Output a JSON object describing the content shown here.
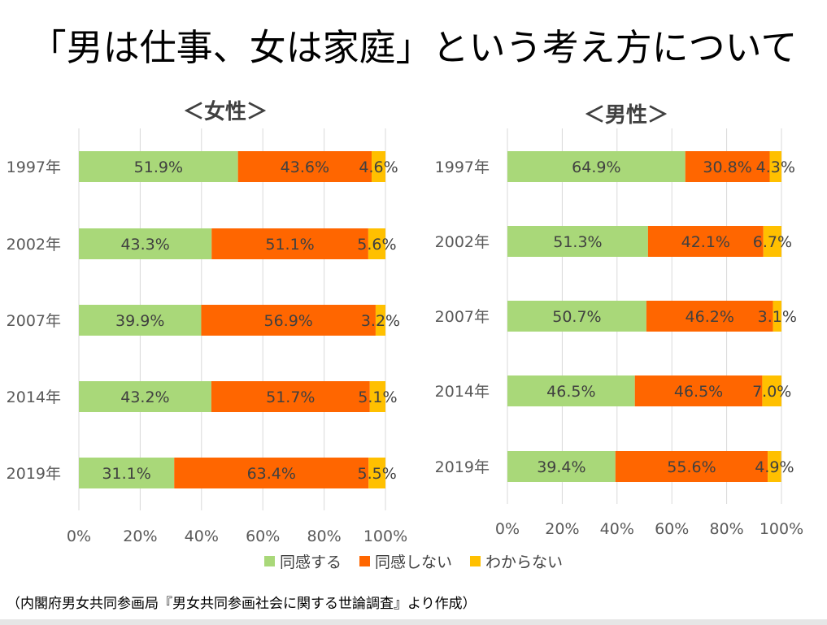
{
  "title": "「男は仕事、女は家庭」という考え方について",
  "source_note": "（内閣府男女共同参画局『男女共同参画社会に関する世論調査』より作成）",
  "colors": {
    "agree": "#a9d879",
    "disagree": "#ff6600",
    "unknown": "#ffc000",
    "grid": "#d9d9d9",
    "axis_text": "#595959",
    "label_text": "#404040"
  },
  "legend": [
    {
      "label": "同感する",
      "color": "#a9d879"
    },
    {
      "label": "同感しない",
      "color": "#ff6600"
    },
    {
      "label": "わからない",
      "color": "#ffc000"
    }
  ],
  "chart_data": [
    {
      "type": "bar",
      "orientation": "horizontal",
      "stacked": true,
      "title": "＜女性＞",
      "categories": [
        "1997年",
        "2002年",
        "2007年",
        "2014年",
        "2019年"
      ],
      "series": [
        {
          "name": "同感する",
          "values": [
            51.9,
            43.3,
            39.9,
            43.2,
            31.1
          ],
          "labels": [
            "51.9%",
            "43.3%",
            "39.9%",
            "43.2%",
            "31.1%"
          ]
        },
        {
          "name": "同感しない",
          "values": [
            43.6,
            51.1,
            56.9,
            51.7,
            63.4
          ],
          "labels": [
            "43.6%",
            "51.1%",
            "56.9%",
            "51.7%",
            "63.4%"
          ]
        },
        {
          "name": "わからない",
          "values": [
            4.6,
            5.6,
            3.2,
            5.1,
            5.5
          ],
          "labels": [
            "4.6%",
            "5.6%",
            "3.2%",
            "5.1%",
            "5.5%"
          ]
        }
      ],
      "xlim": [
        0,
        100
      ],
      "xticks": [
        "0%",
        "20%",
        "40%",
        "60%",
        "80%",
        "100%"
      ],
      "grid": true,
      "legend": "bottom"
    },
    {
      "type": "bar",
      "orientation": "horizontal",
      "stacked": true,
      "title": "＜男性＞",
      "categories": [
        "1997年",
        "2002年",
        "2007年",
        "2014年",
        "2019年"
      ],
      "series": [
        {
          "name": "同感する",
          "values": [
            64.9,
            51.3,
            50.7,
            46.5,
            39.4
          ],
          "labels": [
            "64.9%",
            "51.3%",
            "50.7%",
            "46.5%",
            "39.4%"
          ]
        },
        {
          "name": "同感しない",
          "values": [
            30.8,
            42.1,
            46.2,
            46.5,
            55.6
          ],
          "labels": [
            "30.8%",
            "42.1%",
            "46.2%",
            "46.5%",
            "55.6%"
          ]
        },
        {
          "name": "わからない",
          "values": [
            4.3,
            6.7,
            3.1,
            7.0,
            4.9
          ],
          "labels": [
            "4.3%",
            "6.7%",
            "3.1%",
            "7.0%",
            "4.9%"
          ]
        }
      ],
      "xlim": [
        0,
        100
      ],
      "xticks": [
        "0%",
        "20%",
        "40%",
        "60%",
        "80%",
        "100%"
      ],
      "grid": true,
      "legend": "bottom"
    }
  ]
}
